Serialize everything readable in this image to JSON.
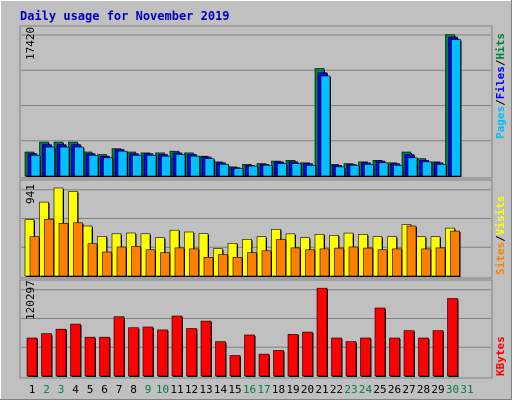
{
  "title": "Daily usage for November 2019",
  "colors": {
    "background": "#c0c0c0",
    "frame_light": "#ffffff",
    "frame_dark": "#808080",
    "title": "#0000c0",
    "hits": "#008040",
    "files": "#0000ff",
    "pages": "#00c0ff",
    "visits": "#ffff00",
    "sites": "#ff8000",
    "kbytes": "#ff0000",
    "weekend_day": "#008040",
    "weekday": "#000000",
    "slash": "#000000"
  },
  "chart_data": [
    {
      "type": "bar",
      "panel": "hits-files-pages",
      "ymax_label": "17420",
      "ymax": 17420,
      "legend": [
        "Pages",
        "/",
        "Files",
        "/",
        "Hits"
      ],
      "categories": [
        "1",
        "2",
        "3",
        "4",
        "5",
        "6",
        "7",
        "8",
        "9",
        "10",
        "11",
        "12",
        "13",
        "14",
        "15",
        "16",
        "17",
        "18",
        "19",
        "20",
        "21",
        "22",
        "23",
        "24",
        "25",
        "26",
        "27",
        "28",
        "29",
        "30",
        "31"
      ],
      "series": [
        {
          "name": "Hits",
          "values": [
            2900,
            4100,
            4100,
            4100,
            2900,
            2600,
            3300,
            2900,
            2800,
            2800,
            3000,
            2800,
            2400,
            1700,
            1100,
            1400,
            1500,
            1800,
            1900,
            1600,
            13000,
            1400,
            1500,
            1700,
            1900,
            1600,
            2900,
            2100,
            1700,
            17100,
            0
          ]
        },
        {
          "name": "Files",
          "values": [
            2700,
            3800,
            3800,
            3800,
            2700,
            2400,
            3200,
            2700,
            2700,
            2600,
            2800,
            2600,
            2300,
            1600,
            1000,
            1300,
            1400,
            1700,
            1700,
            1500,
            12500,
            1300,
            1400,
            1600,
            1800,
            1500,
            2600,
            1900,
            1600,
            16800,
            0
          ]
        },
        {
          "name": "Pages",
          "values": [
            2500,
            3500,
            3500,
            3500,
            2500,
            2200,
            3000,
            2500,
            2500,
            2400,
            2600,
            2400,
            2100,
            1400,
            900,
            1200,
            1300,
            1500,
            1500,
            1300,
            12100,
            1100,
            1300,
            1400,
            1600,
            1300,
            2200,
            1700,
            1400,
            16500,
            0
          ]
        }
      ]
    },
    {
      "type": "bar",
      "panel": "visits-sites",
      "ymax_label": "941",
      "ymax": 941,
      "legend": [
        "Sites",
        "/",
        "Visits"
      ],
      "categories": [
        "1",
        "2",
        "3",
        "4",
        "5",
        "6",
        "7",
        "8",
        "9",
        "10",
        "11",
        "12",
        "13",
        "14",
        "15",
        "16",
        "17",
        "18",
        "19",
        "20",
        "21",
        "22",
        "23",
        "24",
        "25",
        "26",
        "27",
        "28",
        "29",
        "30",
        "31"
      ],
      "series": [
        {
          "name": "Visits",
          "values": [
            602,
            790,
            941,
            904,
            535,
            425,
            451,
            460,
            451,
            410,
            490,
            470,
            452,
            292,
            350,
            392,
            420,
            499,
            450,
            410,
            446,
            435,
            459,
            445,
            420,
            420,
            550,
            420,
            420,
            512,
            0
          ]
        },
        {
          "name": "Sites",
          "values": [
            420,
            607,
            563,
            569,
            345,
            257,
            310,
            315,
            280,
            250,
            300,
            290,
            200,
            230,
            200,
            250,
            270,
            390,
            300,
            280,
            290,
            298,
            310,
            298,
            280,
            290,
            535,
            290,
            300,
            480,
            0
          ]
        }
      ]
    },
    {
      "type": "bar",
      "panel": "kbytes",
      "ymax_label": "120297",
      "ymax": 120297,
      "legend": [
        "KBytes"
      ],
      "categories": [
        "1",
        "2",
        "3",
        "4",
        "5",
        "6",
        "7",
        "8",
        "9",
        "10",
        "11",
        "12",
        "13",
        "14",
        "15",
        "16",
        "17",
        "18",
        "19",
        "20",
        "21",
        "22",
        "23",
        "24",
        "25",
        "26",
        "27",
        "28",
        "29",
        "30",
        "31"
      ],
      "series": [
        {
          "name": "KBytes",
          "values": [
            52000,
            58000,
            64000,
            71000,
            53000,
            53000,
            81000,
            66000,
            67000,
            63000,
            82000,
            65000,
            75000,
            47000,
            28000,
            56000,
            30000,
            35000,
            57000,
            60000,
            120000,
            52000,
            47000,
            52000,
            93000,
            52000,
            62000,
            52000,
            62000,
            106000,
            0
          ]
        }
      ]
    }
  ],
  "x_labels": [
    {
      "day": "1",
      "weekend": false
    },
    {
      "day": "2",
      "weekend": true
    },
    {
      "day": "3",
      "weekend": true
    },
    {
      "day": "4",
      "weekend": false
    },
    {
      "day": "5",
      "weekend": false
    },
    {
      "day": "6",
      "weekend": false
    },
    {
      "day": "7",
      "weekend": false
    },
    {
      "day": "8",
      "weekend": false
    },
    {
      "day": "9",
      "weekend": true
    },
    {
      "day": "10",
      "weekend": true
    },
    {
      "day": "11",
      "weekend": false
    },
    {
      "day": "12",
      "weekend": false
    },
    {
      "day": "13",
      "weekend": false
    },
    {
      "day": "14",
      "weekend": false
    },
    {
      "day": "15",
      "weekend": false
    },
    {
      "day": "16",
      "weekend": true
    },
    {
      "day": "17",
      "weekend": true
    },
    {
      "day": "18",
      "weekend": false
    },
    {
      "day": "19",
      "weekend": false
    },
    {
      "day": "20",
      "weekend": false
    },
    {
      "day": "21",
      "weekend": false
    },
    {
      "day": "22",
      "weekend": false
    },
    {
      "day": "23",
      "weekend": true
    },
    {
      "day": "24",
      "weekend": true
    },
    {
      "day": "25",
      "weekend": false
    },
    {
      "day": "26",
      "weekend": false
    },
    {
      "day": "27",
      "weekend": false
    },
    {
      "day": "28",
      "weekend": false
    },
    {
      "day": "29",
      "weekend": false
    },
    {
      "day": "30",
      "weekend": true
    },
    {
      "day": "31",
      "weekend": true
    }
  ]
}
